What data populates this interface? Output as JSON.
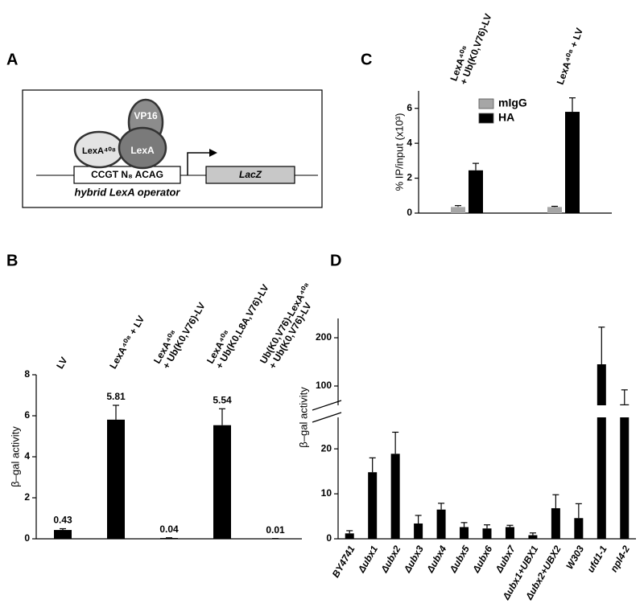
{
  "panels": [
    "A",
    "B",
    "C",
    "D"
  ],
  "diagram": {
    "activator": "VP16",
    "dbd_mutant": "LexA⁴⁰⁸",
    "dbd": "LexA",
    "operator": "CCGT N₈ ACAG",
    "reporter": "LacZ",
    "caption": "hybrid LexA operator"
  },
  "chart_data": [
    {
      "type": "bar",
      "ylabel": "β–gal activity",
      "categories": [
        [
          "LV"
        ],
        [
          "LexA⁴⁰⁸ + LV"
        ],
        [
          "LexA⁴⁰⁸",
          "+ Ub(K0,V76)-LV"
        ],
        [
          "LexA⁴⁰⁸",
          "+ Ub(K0,L8A,V76)-LV"
        ],
        [
          "Ub(K0,V76)-LexA⁴⁰⁸",
          "+ Ub(K0,V76)-LV"
        ]
      ],
      "values": [
        0.43,
        5.81,
        0.04,
        5.54,
        0.01
      ],
      "errors": [
        0.06,
        0.7,
        0.01,
        0.8,
        0.005
      ],
      "color": "#000000",
      "data_labels": true,
      "ylim": [
        0,
        8
      ],
      "yticks": [
        0,
        2,
        4,
        6,
        8
      ]
    },
    {
      "type": "bar",
      "ylabel": "% IP/input (x10³)",
      "categories": [
        [
          "LexA⁴⁰⁸",
          "+ Ub(K0,V76)-LV"
        ],
        [
          "LexA⁴⁰⁸ + LV"
        ]
      ],
      "series": [
        {
          "name": "mIgG",
          "color": "#a6a6a6",
          "values": [
            0.35,
            0.35
          ],
          "errors": [
            0.08,
            0.04
          ]
        },
        {
          "name": "HA",
          "color": "#000000",
          "values": [
            2.45,
            5.8
          ],
          "errors": [
            0.4,
            0.8
          ]
        }
      ],
      "legend": "upper center",
      "ylim": [
        0,
        7
      ],
      "yticks": [
        0,
        2,
        4,
        6
      ]
    },
    {
      "type": "bar",
      "ylabel": "β–gal activity",
      "categories": [
        "BY4741",
        "Δubx1",
        "Δubx2",
        "Δubx3",
        "Δubx4",
        "Δubx5",
        "Δubx6",
        "Δubx7",
        "Δubx1+UBX1",
        "Δubx2+UBX2",
        "W303",
        "ufd1-1",
        "npl4-2"
      ],
      "values": [
        1.2,
        14.8,
        18.9,
        3.4,
        6.5,
        2.6,
        2.3,
        2.6,
        0.8,
        6.8,
        4.6,
        145,
        62
      ],
      "errors": [
        0.6,
        3.2,
        4.8,
        1.8,
        1.4,
        1.0,
        0.8,
        0.4,
        0.5,
        3.0,
        3.2,
        77,
        30
      ],
      "color": "#000000",
      "ylim": [
        0,
        240
      ],
      "ybreak": [
        27,
        60
      ],
      "yticks": [
        0,
        10,
        20,
        100,
        200
      ]
    }
  ]
}
